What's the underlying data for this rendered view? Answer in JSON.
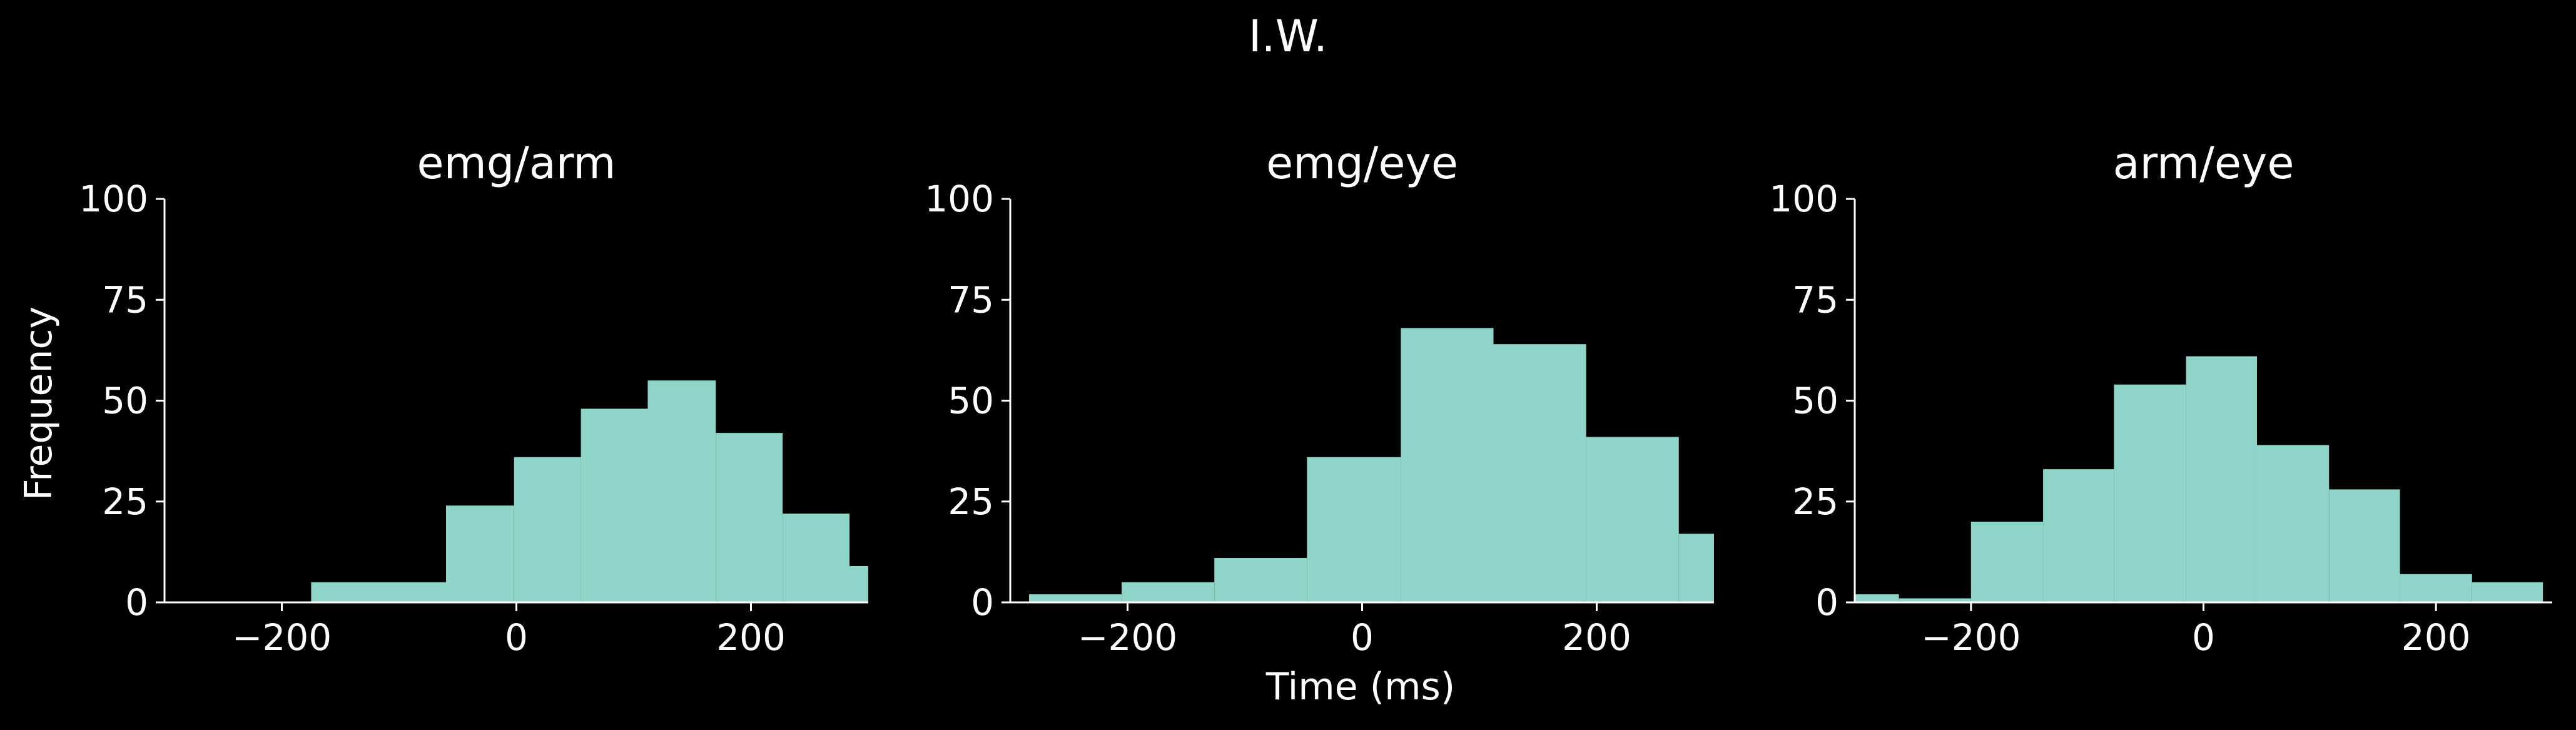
{
  "figure": {
    "title": "I.W.",
    "ylabel": "Frequency",
    "xlabel": "Time (ms)",
    "bar_color": "#8fd4c8",
    "background": "#000000",
    "text_color": "#ffffff"
  },
  "chart_data": [
    {
      "type": "bar",
      "title": "emg/arm",
      "xlim": [
        -300,
        300
      ],
      "ylim": [
        0,
        100
      ],
      "xticks": [
        -200,
        0,
        200
      ],
      "yticks": [
        0,
        25,
        50,
        75,
        100
      ],
      "bins": [
        {
          "x0": -300,
          "x1": -175,
          "value": 0
        },
        {
          "x0": -175,
          "x1": -60,
          "value": 5
        },
        {
          "x0": -60,
          "x1": -2,
          "value": 24
        },
        {
          "x0": -2,
          "x1": 55,
          "value": 36
        },
        {
          "x0": 55,
          "x1": 112,
          "value": 48
        },
        {
          "x0": 112,
          "x1": 170,
          "value": 55
        },
        {
          "x0": 170,
          "x1": 227,
          "value": 42
        },
        {
          "x0": 227,
          "x1": 284,
          "value": 22
        },
        {
          "x0": 284,
          "x1": 300,
          "value": 9
        }
      ]
    },
    {
      "type": "bar",
      "title": "emg/eye",
      "xlim": [
        -300,
        300
      ],
      "ylim": [
        0,
        100
      ],
      "xticks": [
        -200,
        0,
        200
      ],
      "yticks": [
        0,
        25,
        50,
        75,
        100
      ],
      "bins": [
        {
          "x0": -284,
          "x1": -205,
          "value": 2
        },
        {
          "x0": -205,
          "x1": -126,
          "value": 5
        },
        {
          "x0": -126,
          "x1": -47,
          "value": 11
        },
        {
          "x0": -47,
          "x1": 33,
          "value": 36
        },
        {
          "x0": 33,
          "x1": 112,
          "value": 68
        },
        {
          "x0": 112,
          "x1": 191,
          "value": 64
        },
        {
          "x0": 191,
          "x1": 270,
          "value": 41
        },
        {
          "x0": 270,
          "x1": 300,
          "value": 17
        }
      ]
    },
    {
      "type": "bar",
      "title": "arm/eye",
      "xlim": [
        -300,
        300
      ],
      "ylim": [
        0,
        100
      ],
      "xticks": [
        -200,
        0,
        200
      ],
      "yticks": [
        0,
        25,
        50,
        75,
        100
      ],
      "bins": [
        {
          "x0": -300,
          "x1": -262,
          "value": 2
        },
        {
          "x0": -262,
          "x1": -200,
          "value": 1
        },
        {
          "x0": -200,
          "x1": -138,
          "value": 20
        },
        {
          "x0": -138,
          "x1": -77,
          "value": 33
        },
        {
          "x0": -77,
          "x1": -15,
          "value": 54
        },
        {
          "x0": -15,
          "x1": 46,
          "value": 61
        },
        {
          "x0": 46,
          "x1": 108,
          "value": 39
        },
        {
          "x0": 108,
          "x1": 169,
          "value": 28
        },
        {
          "x0": 169,
          "x1": 231,
          "value": 7
        },
        {
          "x0": 231,
          "x1": 292,
          "value": 5
        }
      ]
    }
  ]
}
